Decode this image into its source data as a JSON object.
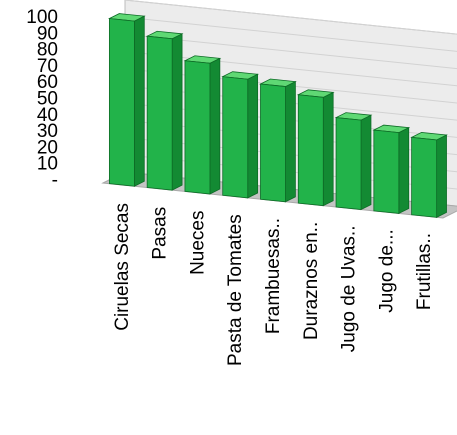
{
  "chart_data": {
    "type": "bar",
    "categories": [
      "Ciruelas Secas",
      "Pasas",
      "Nueces",
      "Pasta de Tomates",
      "Frambuesas..",
      "Duraznos en..",
      "Jugo de Uvas..",
      "Jugo de...",
      "Frutillas.."
    ],
    "values": [
      96,
      88,
      76,
      69,
      67,
      63,
      52,
      47,
      45
    ],
    "y_tick_labels": [
      "-",
      "10",
      "20",
      "30",
      "40",
      "50",
      "60",
      "70",
      "80",
      "90",
      "100"
    ],
    "ylim": [
      0,
      100
    ],
    "title": "",
    "xlabel": "",
    "ylabel": "",
    "grid": true,
    "legend": "none",
    "colors": {
      "bar_front": "#22b34a",
      "bar_side": "#138a33",
      "bar_top": "#5fd874",
      "bar_edge": "#0d6b26",
      "wall": "#ececec",
      "floor": "#c4c4c4",
      "grid": "#d2d2d2"
    }
  }
}
